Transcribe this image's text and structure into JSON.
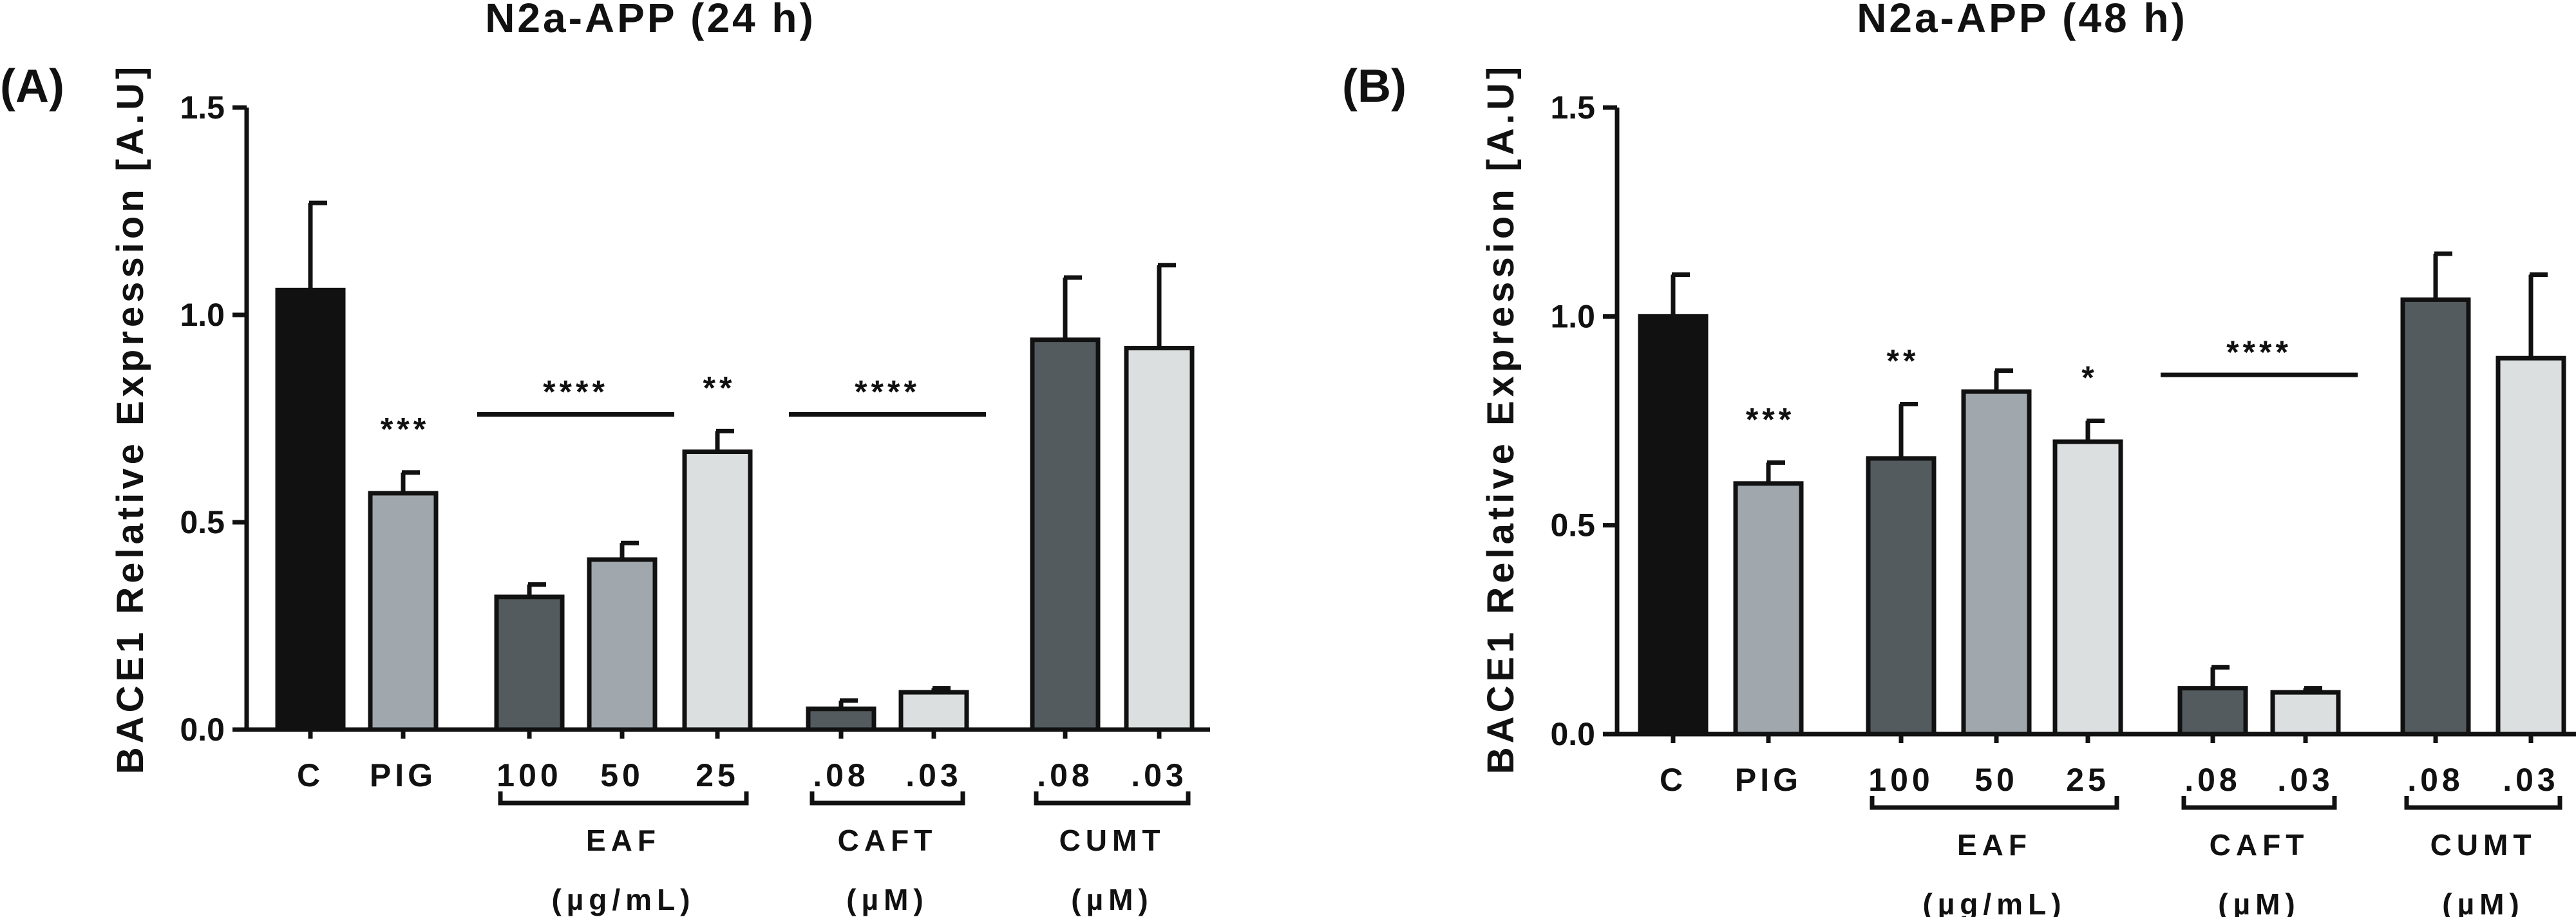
{
  "colors": {
    "control": "#111111",
    "pig": "#a0a8ad",
    "dark": "#545b5e",
    "mid": "#a0a8ad",
    "light": "#dcdfdf",
    "stroke": "#111111"
  },
  "chart_data": [
    {
      "type": "bar",
      "panel": "(A)",
      "title": "N2a-APP (24 h)",
      "ylabel": "BACE1 Relative Expression [A.U]",
      "xlabel": "",
      "ylim": [
        0,
        1.5
      ],
      "yticks": [
        "0.0",
        "0.5",
        "1.0",
        "1.5"
      ],
      "yticks_values": [
        0,
        0.5,
        1.0,
        1.5
      ],
      "grid": false,
      "bars": [
        {
          "label": "C",
          "value": 1.06,
          "error": 0.21,
          "color": "control",
          "sig": ""
        },
        {
          "label": "PIG",
          "value": 0.57,
          "error": 0.05,
          "color": "pig",
          "sig": "***"
        },
        {
          "label": "100",
          "value": 0.32,
          "error": 0.03,
          "color": "dark",
          "sig": ""
        },
        {
          "label": "50",
          "value": 0.41,
          "error": 0.04,
          "color": "mid",
          "sig": ""
        },
        {
          "label": "25",
          "value": 0.67,
          "error": 0.05,
          "color": "light",
          "sig": "**"
        },
        {
          "label": ".08",
          "value": 0.05,
          "error": 0.02,
          "color": "dark",
          "sig": ""
        },
        {
          "label": ".03",
          "value": 0.09,
          "error": 0.01,
          "color": "light",
          "sig": ""
        },
        {
          "label": ".08",
          "value": 0.94,
          "error": 0.15,
          "color": "dark",
          "sig": ""
        },
        {
          "label": ".03",
          "value": 0.92,
          "error": 0.2,
          "color": "light",
          "sig": ""
        }
      ],
      "sig_lines": [
        {
          "text": "****",
          "from_bar": 2,
          "to_bar": 3,
          "y": 0.76
        },
        {
          "text": "****",
          "from_bar": 5,
          "to_bar": 6,
          "y": 0.76
        }
      ],
      "groups": [
        {
          "name": "EAF",
          "unit": "(µg/mL)",
          "from_bar": 2,
          "to_bar": 4
        },
        {
          "name": "CAFT",
          "unit": "(µM)",
          "from_bar": 5,
          "to_bar": 6
        },
        {
          "name": "CUMT",
          "unit": "(µM)",
          "from_bar": 7,
          "to_bar": 8
        }
      ]
    },
    {
      "type": "bar",
      "panel": "(B)",
      "title": "N2a-APP (48 h)",
      "ylabel": "BACE1 Relative Expression [A.U]",
      "xlabel": "",
      "ylim": [
        0,
        1.5
      ],
      "yticks": [
        "0.0",
        "0.5",
        "1.0",
        "1.5"
      ],
      "yticks_values": [
        0,
        0.5,
        1.0,
        1.5
      ],
      "grid": false,
      "bars": [
        {
          "label": "C",
          "value": 1.0,
          "error": 0.1,
          "color": "control",
          "sig": ""
        },
        {
          "label": "PIG",
          "value": 0.6,
          "error": 0.05,
          "color": "pig",
          "sig": "***"
        },
        {
          "label": "100",
          "value": 0.66,
          "error": 0.13,
          "color": "dark",
          "sig": "**"
        },
        {
          "label": "50",
          "value": 0.82,
          "error": 0.05,
          "color": "mid",
          "sig": ""
        },
        {
          "label": "25",
          "value": 0.7,
          "error": 0.05,
          "color": "light",
          "sig": "*"
        },
        {
          "label": ".08",
          "value": 0.11,
          "error": 0.05,
          "color": "dark",
          "sig": ""
        },
        {
          "label": ".03",
          "value": 0.1,
          "error": 0.01,
          "color": "light",
          "sig": ""
        },
        {
          "label": ".08",
          "value": 1.04,
          "error": 0.11,
          "color": "dark",
          "sig": ""
        },
        {
          "label": ".03",
          "value": 0.9,
          "error": 0.2,
          "color": "light",
          "sig": ""
        }
      ],
      "sig_lines": [
        {
          "text": "****",
          "from_bar": 5,
          "to_bar": 6,
          "y": 0.86
        }
      ],
      "groups": [
        {
          "name": "EAF",
          "unit": "(µg/mL)",
          "from_bar": 2,
          "to_bar": 4
        },
        {
          "name": "CAFT",
          "unit": "(µM)",
          "from_bar": 5,
          "to_bar": 6
        },
        {
          "name": "CUMT",
          "unit": "(µM)",
          "from_bar": 7,
          "to_bar": 8
        }
      ]
    }
  ]
}
